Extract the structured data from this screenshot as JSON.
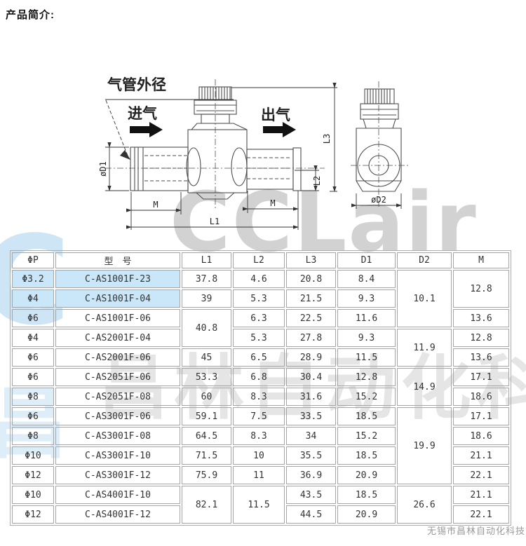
{
  "page": {
    "title": "产品简介:",
    "footer": "无锡市昌林自动化科技"
  },
  "watermark": {
    "latin": "CCLair",
    "blue_letter": "C",
    "blue_cn": "昌",
    "cn": "昌林自动化科",
    "gray_color": "#9b9b9b",
    "blue_color": "#add4ee"
  },
  "diagram": {
    "labels": {
      "tube_od": "气管外径",
      "air_in": "进气",
      "air_out": "出气",
      "d1": "øD1",
      "d2": "øD2",
      "m_left": "M",
      "m_right": "M",
      "l1": "L1",
      "l2": "L2",
      "l3": "L3"
    }
  },
  "table": {
    "highlight_color": "#c9e7f9",
    "headers": [
      "ΦP",
      "型　号",
      "L1",
      "L2",
      "L3",
      "D1",
      "D2",
      "M"
    ],
    "rows": [
      {
        "cells": [
          {
            "t": "Φ3.2",
            "hl": true
          },
          {
            "t": "C-AS1001F-23",
            "hl": true
          },
          {
            "t": "37.8"
          },
          {
            "t": "4.6"
          },
          {
            "t": "20.8"
          },
          {
            "t": "8.4"
          },
          {
            "t": "10.1",
            "rs": 3
          },
          {
            "t": "12.8",
            "rs": 2
          }
        ]
      },
      {
        "cells": [
          {
            "t": "Φ4",
            "hl": true
          },
          {
            "t": "C-AS1001F-04",
            "hl": true
          },
          {
            "t": "39"
          },
          {
            "t": "5.3"
          },
          {
            "t": "21.5"
          },
          {
            "t": "9.3"
          }
        ]
      },
      {
        "cells": [
          {
            "t": "Φ6"
          },
          {
            "t": "C-AS1001F-06"
          },
          {
            "t": "40.8",
            "rs": 2
          },
          {
            "t": "6.3"
          },
          {
            "t": "22.5"
          },
          {
            "t": "11.6"
          },
          {
            "t": "13.6"
          }
        ]
      },
      {
        "cells": [
          {
            "t": "Φ4"
          },
          {
            "t": "C-AS2001F-04"
          },
          {
            "t": "5.3"
          },
          {
            "t": "27.8"
          },
          {
            "t": "9.3"
          },
          {
            "t": "11.9",
            "rs": 2
          },
          {
            "t": "12.8"
          }
        ]
      },
      {
        "cells": [
          {
            "t": "Φ6"
          },
          {
            "t": "C-AS2001F-06"
          },
          {
            "t": "45"
          },
          {
            "t": "6.5"
          },
          {
            "t": "28.9"
          },
          {
            "t": "11.5"
          },
          {
            "t": "13.6"
          }
        ]
      },
      {
        "cells": [
          {
            "t": "Φ6"
          },
          {
            "t": "C-AS2051F-06"
          },
          {
            "t": "53.3"
          },
          {
            "t": "6.8"
          },
          {
            "t": "30.4"
          },
          {
            "t": "12.8"
          },
          {
            "t": "14.9",
            "rs": 2
          },
          {
            "t": "17.1"
          }
        ]
      },
      {
        "cells": [
          {
            "t": "Φ8"
          },
          {
            "t": "C-AS2051F-08"
          },
          {
            "t": "60"
          },
          {
            "t": "8.3"
          },
          {
            "t": "31.6"
          },
          {
            "t": "15.2"
          },
          {
            "t": "18.6"
          }
        ]
      },
      {
        "cells": [
          {
            "t": "Φ6"
          },
          {
            "t": "C-AS3001F-06"
          },
          {
            "t": "59.1"
          },
          {
            "t": "7.5"
          },
          {
            "t": "33.5"
          },
          {
            "t": "18.5"
          },
          {
            "t": "19.9",
            "rs": 4
          },
          {
            "t": "17.1"
          }
        ]
      },
      {
        "cells": [
          {
            "t": "Φ8"
          },
          {
            "t": "C-AS3001F-08"
          },
          {
            "t": "64.5"
          },
          {
            "t": "8.3"
          },
          {
            "t": "34"
          },
          {
            "t": "15.2"
          },
          {
            "t": "18.6"
          }
        ]
      },
      {
        "cells": [
          {
            "t": "Φ10"
          },
          {
            "t": "C-AS3001F-10"
          },
          {
            "t": "71.5"
          },
          {
            "t": "10"
          },
          {
            "t": "35.5"
          },
          {
            "t": "18.5"
          },
          {
            "t": "21.1"
          }
        ]
      },
      {
        "cells": [
          {
            "t": "Φ12"
          },
          {
            "t": "C-AS3001F-12"
          },
          {
            "t": "75.9"
          },
          {
            "t": "11"
          },
          {
            "t": "36.9"
          },
          {
            "t": "20.9"
          },
          {
            "t": "22.1"
          }
        ]
      },
      {
        "cells": [
          {
            "t": "Φ10"
          },
          {
            "t": "C-AS4001F-10"
          },
          {
            "t": "82.1",
            "rs": 2
          },
          {
            "t": "11.5",
            "rs": 2
          },
          {
            "t": "43.5"
          },
          {
            "t": "18.5"
          },
          {
            "t": "26.6",
            "rs": 2
          },
          {
            "t": "21.1"
          }
        ]
      },
      {
        "cells": [
          {
            "t": "Φ12"
          },
          {
            "t": "C-AS4001F-12"
          },
          {
            "t": "44.5"
          },
          {
            "t": "20.9"
          },
          {
            "t": "22.1"
          }
        ]
      }
    ]
  }
}
